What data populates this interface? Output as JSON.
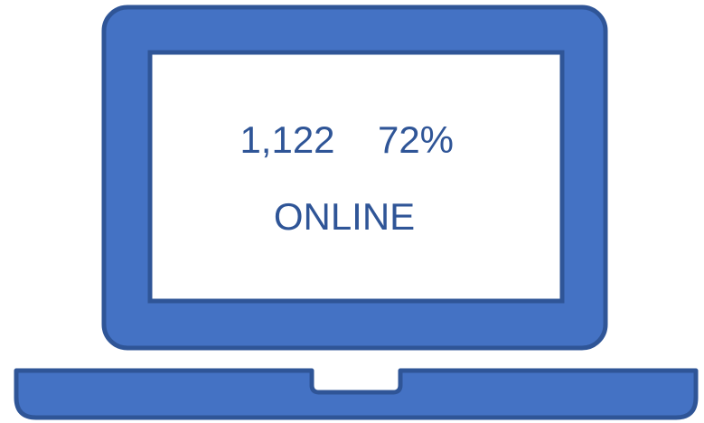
{
  "screen": {
    "count": "1,122",
    "percent": "72%",
    "status": "ONLINE"
  }
}
